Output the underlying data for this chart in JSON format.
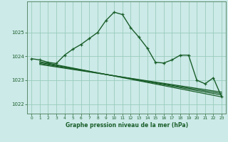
{
  "title": "Graphe pression niveau de la mer (hPa)",
  "bg_color": "#cceae8",
  "grid_color": "#99ccbb",
  "line_color": "#1a5e2a",
  "xlim": [
    -0.5,
    23.5
  ],
  "ylim": [
    1021.6,
    1026.3
  ],
  "yticks": [
    1022,
    1023,
    1024,
    1025
  ],
  "xticks": [
    0,
    1,
    2,
    3,
    4,
    5,
    6,
    7,
    8,
    9,
    10,
    11,
    12,
    13,
    14,
    15,
    16,
    17,
    18,
    19,
    20,
    21,
    22,
    23
  ],
  "series": [
    {
      "x": [
        0,
        1,
        2,
        3,
        4,
        5,
        6,
        7,
        8,
        9,
        10,
        11,
        12,
        13,
        14,
        15,
        16,
        17,
        18,
        19,
        20,
        21,
        22,
        23
      ],
      "y": [
        1023.9,
        1023.85,
        1023.75,
        1023.7,
        1024.05,
        1024.3,
        1024.5,
        1024.75,
        1025.0,
        1025.5,
        1025.85,
        1025.75,
        1025.2,
        1024.8,
        1024.35,
        1023.75,
        1023.72,
        1023.85,
        1024.05,
        1024.05,
        1023.0,
        1022.85,
        1023.1,
        1022.3
      ],
      "marker": true,
      "lw": 1.0
    },
    {
      "x": [
        1,
        23
      ],
      "y": [
        1023.78,
        1022.3
      ],
      "marker": false,
      "lw": 0.9
    },
    {
      "x": [
        1,
        23
      ],
      "y": [
        1023.74,
        1022.38
      ],
      "marker": false,
      "lw": 0.9
    },
    {
      "x": [
        1,
        23
      ],
      "y": [
        1023.7,
        1022.44
      ],
      "marker": false,
      "lw": 0.9
    },
    {
      "x": [
        1,
        23
      ],
      "y": [
        1023.66,
        1022.5
      ],
      "marker": false,
      "lw": 0.9
    }
  ]
}
